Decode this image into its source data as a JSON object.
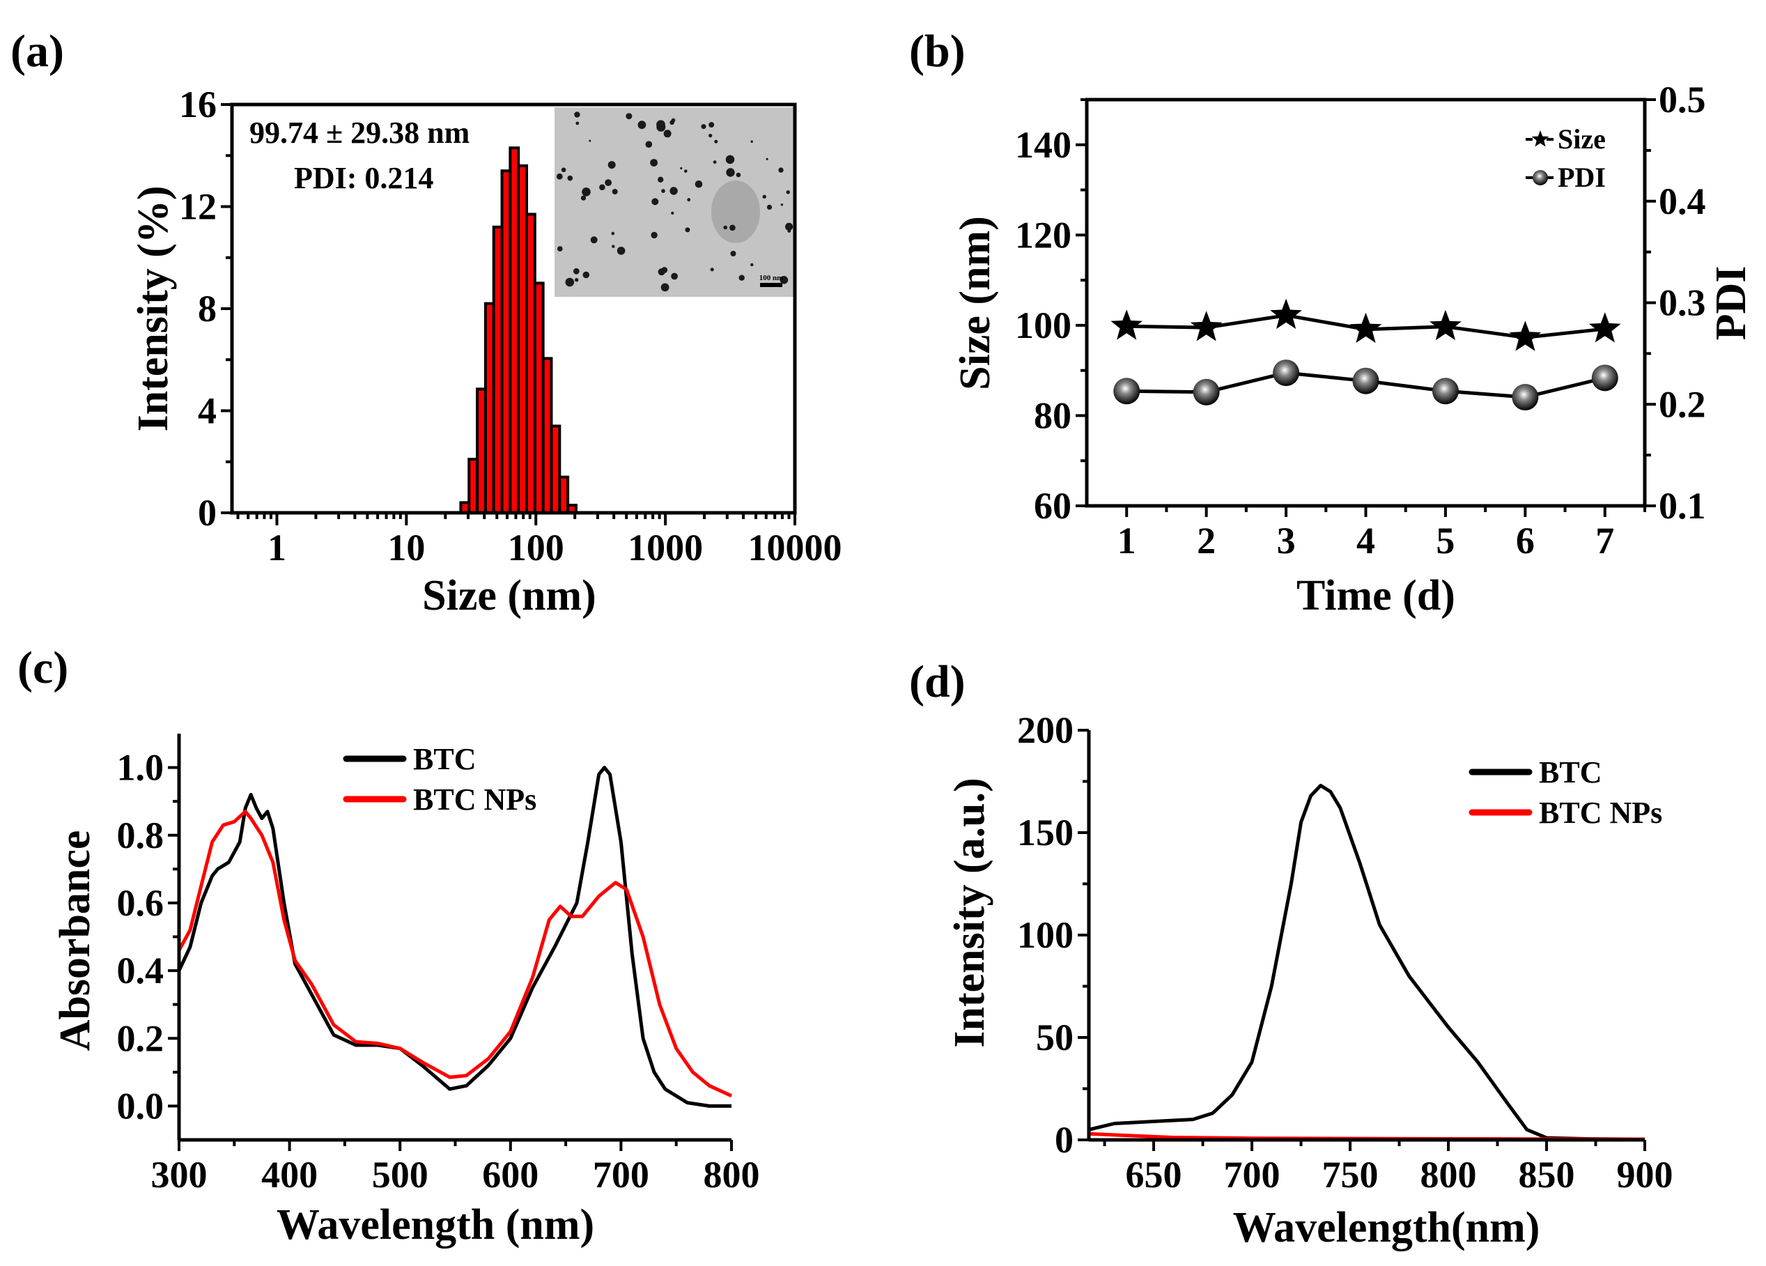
{
  "chart_data": [
    {
      "panel_label": "(a)",
      "type": "bar",
      "xlabel": "Size (nm)",
      "ylabel": "Intensity (%)",
      "xscale": "log",
      "xlim": [
        0.45,
        10000
      ],
      "ylim": [
        0,
        16
      ],
      "xticks": [
        1,
        10,
        100,
        1000,
        10000
      ],
      "xtick_labels": [
        "1",
        "10",
        "100",
        "1000",
        "10000"
      ],
      "yticks": [
        0,
        4,
        8,
        12,
        16
      ],
      "ytick_labels": [
        "0",
        "4",
        "8",
        "12",
        "16"
      ],
      "bar_color": "#ff0000",
      "bin_log_start": 1.42,
      "bin_log_width": 0.0636,
      "values": [
        0.4,
        2.1,
        4.85,
        8.2,
        11.2,
        13.4,
        14.3,
        13.6,
        11.7,
        9.0,
        6.05,
        3.4,
        1.4,
        0.3
      ],
      "annotations": [
        "99.74 ± 29.38 nm",
        "PDI: 0.214"
      ],
      "inset": {
        "type": "TEM image",
        "scale_bar": "100 nm"
      }
    },
    {
      "panel_label": "(b)",
      "type": "line",
      "xlabel": "Time (d)",
      "ylabel": "Size (nm)",
      "y2label": "PDI",
      "x": [
        1,
        2,
        3,
        4,
        5,
        6,
        7
      ],
      "xlim": [
        0.5,
        7.5
      ],
      "ylim": [
        60,
        150
      ],
      "y2lim": [
        0.1,
        0.5
      ],
      "xtick_labels": [
        "1",
        "2",
        "3",
        "4",
        "5",
        "6",
        "7"
      ],
      "yticks": [
        60,
        80,
        100,
        120,
        140
      ],
      "ytick_labels": [
        "60",
        "80",
        "100",
        "120",
        "140"
      ],
      "y2ticks": [
        0.1,
        0.2,
        0.3,
        0.4,
        0.5
      ],
      "y2tick_labels": [
        "0.1",
        "0.2",
        "0.3",
        "0.4",
        "0.5"
      ],
      "legend_position": "top-right",
      "series": [
        {
          "name": "Size",
          "marker": "star",
          "axis": "left",
          "values": [
            99.8,
            99.5,
            102.2,
            99.1,
            99.7,
            97.3,
            99.2
          ]
        },
        {
          "name": "PDI",
          "marker": "sphere",
          "axis": "right",
          "values": [
            0.213,
            0.212,
            0.231,
            0.223,
            0.213,
            0.207,
            0.226
          ]
        }
      ]
    },
    {
      "panel_label": "(c)",
      "type": "line",
      "xlabel": "Wavelength (nm)",
      "ylabel": "Absorbance",
      "xlim": [
        300,
        800
      ],
      "ylim": [
        -0.1,
        1.1
      ],
      "xticks": [
        300,
        400,
        500,
        600,
        700,
        800
      ],
      "xtick_labels": [
        "300",
        "400",
        "500",
        "600",
        "700",
        "800"
      ],
      "yticks": [
        0,
        0.2,
        0.4,
        0.6,
        0.8,
        1.0
      ],
      "ytick_labels": [
        "0.0",
        "0.2",
        "0.4",
        "0.6",
        "0.8",
        "1.0"
      ],
      "legend_position": "top-center",
      "series": [
        {
          "name": "BTC",
          "color": "#000000",
          "x": [
            300,
            310,
            320,
            330,
            335,
            345,
            355,
            360,
            365,
            370,
            375,
            380,
            385,
            395,
            405,
            420,
            440,
            460,
            480,
            500,
            520,
            545,
            560,
            580,
            600,
            620,
            640,
            660,
            670,
            680,
            685,
            690,
            700,
            710,
            720,
            730,
            740,
            760,
            780,
            800
          ],
          "y": [
            0.4,
            0.47,
            0.6,
            0.68,
            0.7,
            0.72,
            0.78,
            0.88,
            0.92,
            0.88,
            0.85,
            0.87,
            0.82,
            0.6,
            0.42,
            0.33,
            0.21,
            0.18,
            0.18,
            0.17,
            0.12,
            0.05,
            0.06,
            0.12,
            0.2,
            0.35,
            0.47,
            0.6,
            0.78,
            0.98,
            1.0,
            0.98,
            0.78,
            0.45,
            0.2,
            0.1,
            0.05,
            0.01,
            0.0,
            0.0
          ]
        },
        {
          "name": "BTC NPs",
          "color": "#ff0000",
          "x": [
            300,
            310,
            320,
            330,
            340,
            350,
            360,
            365,
            375,
            385,
            395,
            405,
            420,
            440,
            460,
            480,
            500,
            520,
            545,
            560,
            580,
            600,
            620,
            635,
            645,
            655,
            665,
            680,
            695,
            705,
            720,
            735,
            750,
            765,
            780,
            800
          ],
          "y": [
            0.46,
            0.52,
            0.65,
            0.78,
            0.83,
            0.84,
            0.87,
            0.85,
            0.8,
            0.72,
            0.55,
            0.43,
            0.36,
            0.24,
            0.19,
            0.185,
            0.17,
            0.13,
            0.085,
            0.09,
            0.14,
            0.22,
            0.38,
            0.55,
            0.59,
            0.56,
            0.56,
            0.62,
            0.66,
            0.64,
            0.5,
            0.3,
            0.17,
            0.1,
            0.06,
            0.03
          ]
        }
      ]
    },
    {
      "panel_label": "(d)",
      "type": "line",
      "xlabel": "Wavelength(nm)",
      "ylabel": "Intensity (a.u.)",
      "xlim": [
        617,
        900
      ],
      "ylim": [
        0,
        200
      ],
      "xticks": [
        650,
        700,
        750,
        800,
        850,
        900
      ],
      "xtick_labels": [
        "650",
        "700",
        "750",
        "800",
        "850",
        "900"
      ],
      "yticks": [
        0,
        50,
        100,
        150,
        200
      ],
      "ytick_labels": [
        "0",
        "50",
        "100",
        "150",
        "200"
      ],
      "legend_position": "top-right",
      "series": [
        {
          "name": "BTC",
          "color": "#000000",
          "x": [
            617,
            630,
            650,
            670,
            680,
            690,
            700,
            710,
            720,
            725,
            730,
            735,
            740,
            745,
            755,
            765,
            780,
            800,
            815,
            830,
            840,
            850,
            870,
            900
          ],
          "y": [
            5,
            8,
            9,
            10,
            13,
            22,
            38,
            75,
            125,
            155,
            168,
            173,
            170,
            162,
            135,
            105,
            80,
            55,
            38,
            18,
            5,
            1,
            0.5,
            0.3
          ]
        },
        {
          "name": "BTC NPs",
          "color": "#ff0000",
          "x": [
            617,
            640,
            660,
            700,
            800,
            900
          ],
          "y": [
            3,
            2,
            1.2,
            0.8,
            0.5,
            0.3
          ]
        }
      ]
    }
  ]
}
